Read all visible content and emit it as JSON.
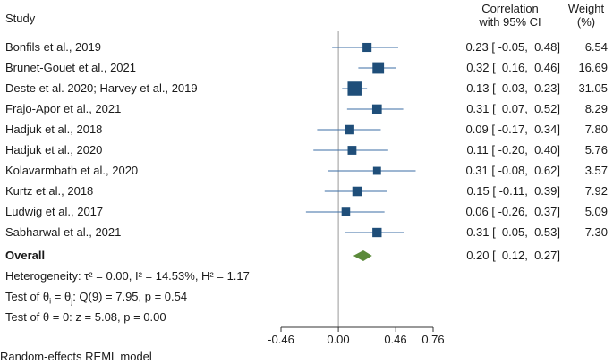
{
  "chart_data": {
    "type": "forest",
    "title": "",
    "headers": {
      "study": "Study",
      "corr_line1": "Correlation",
      "corr_line2": "with 95% CI",
      "weight_line1": "Weight",
      "weight_line2": "(%)"
    },
    "studies": [
      {
        "label": "Bonfils et al., 2019",
        "est": 0.23,
        "lo": -0.05,
        "hi": 0.48,
        "weight": 6.54,
        "ci_text": "0.23 [ -0.05,  0.48]",
        "weight_text": "6.54"
      },
      {
        "label": "Brunet-Gouet et al., 2021",
        "est": 0.32,
        "lo": 0.16,
        "hi": 0.46,
        "weight": 16.69,
        "ci_text": "0.32 [  0.16,  0.46]",
        "weight_text": "16.69"
      },
      {
        "label": "Deste et al. 2020; Harvey et al., 2019",
        "est": 0.13,
        "lo": 0.03,
        "hi": 0.23,
        "weight": 31.05,
        "ci_text": "0.13 [  0.03,  0.23]",
        "weight_text": "31.05"
      },
      {
        "label": "Frajo-Apor et al., 2021",
        "est": 0.31,
        "lo": 0.07,
        "hi": 0.52,
        "weight": 8.29,
        "ci_text": "0.31 [  0.07,  0.52]",
        "weight_text": "8.29"
      },
      {
        "label": "Hadjuk et al., 2018",
        "est": 0.09,
        "lo": -0.17,
        "hi": 0.34,
        "weight": 7.8,
        "ci_text": "0.09 [ -0.17,  0.34]",
        "weight_text": "7.80"
      },
      {
        "label": "Hadjuk et al., 2020",
        "est": 0.11,
        "lo": -0.2,
        "hi": 0.4,
        "weight": 5.76,
        "ci_text": "0.11 [ -0.20,  0.40]",
        "weight_text": "5.76"
      },
      {
        "label": "Kolavarmbath et al., 2020",
        "est": 0.31,
        "lo": -0.08,
        "hi": 0.62,
        "weight": 3.57,
        "ci_text": "0.31 [ -0.08,  0.62]",
        "weight_text": "3.57"
      },
      {
        "label": "Kurtz et al., 2018",
        "est": 0.15,
        "lo": -0.11,
        "hi": 0.39,
        "weight": 7.92,
        "ci_text": "0.15 [ -0.11,  0.39]",
        "weight_text": "7.92"
      },
      {
        "label": "Ludwig et al., 2017",
        "est": 0.06,
        "lo": -0.26,
        "hi": 0.37,
        "weight": 5.09,
        "ci_text": "0.06 [ -0.26,  0.37]",
        "weight_text": "5.09"
      },
      {
        "label": "Sabharwal et al., 2021",
        "est": 0.31,
        "lo": 0.05,
        "hi": 0.53,
        "weight": 7.3,
        "ci_text": "0.31 [  0.05,  0.53]",
        "weight_text": "7.30"
      }
    ],
    "overall": {
      "label": "Overall",
      "est": 0.2,
      "lo": 0.12,
      "hi": 0.27,
      "ci_text": "0.20 [  0.12,  0.27]"
    },
    "footnotes": {
      "heterogeneity": "Heterogeneity: τ² = 0.00, I² = 14.53%, H² = 1.17",
      "theta_test_pre": "Test of θ",
      "theta_test_sub1": "i",
      "theta_test_mid": " = θ",
      "theta_test_sub2": "j",
      "theta_test_post": ": Q(9) = 7.95, p = 0.54",
      "zero_test": "Test of θ = 0: z = 5.08, p = 0.00"
    },
    "x_axis": {
      "ticks": [
        -0.46,
        0.0,
        0.46,
        0.76
      ],
      "tick_labels": [
        "-0.46",
        "0.00",
        "0.46",
        "0.76"
      ],
      "xlim": [
        -0.46,
        0.76
      ]
    },
    "model_note": "Random-effects REML model",
    "colors": {
      "marker": "#1f4e79",
      "ci_line": "#3b6ea5",
      "diamond": "#5b8a3a",
      "null_line": "#9a9a9a",
      "axis": "#333333"
    }
  }
}
